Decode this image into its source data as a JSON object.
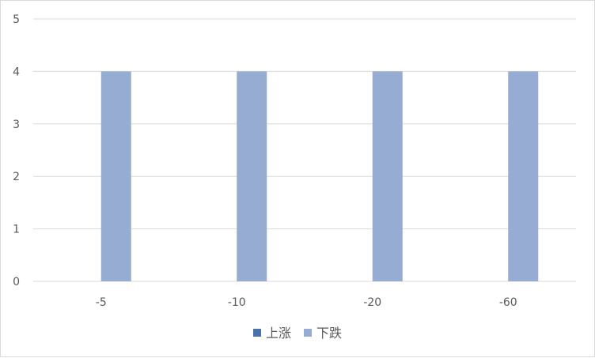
{
  "chart_data": {
    "type": "bar",
    "categories": [
      "-5",
      "-10",
      "-20",
      "-60"
    ],
    "series": [
      {
        "name": "上涨",
        "values": [
          0,
          0,
          0,
          0
        ],
        "color": "#4a72a8"
      },
      {
        "name": "下跌",
        "values": [
          4,
          4,
          4,
          4
        ],
        "color": "#97acd3"
      }
    ],
    "ylim": [
      0,
      5
    ],
    "yticks": [
      0,
      1,
      2,
      3,
      4,
      5
    ],
    "grid": true,
    "gridline_color": "#d9d9d9",
    "legend_position": "bottom"
  }
}
